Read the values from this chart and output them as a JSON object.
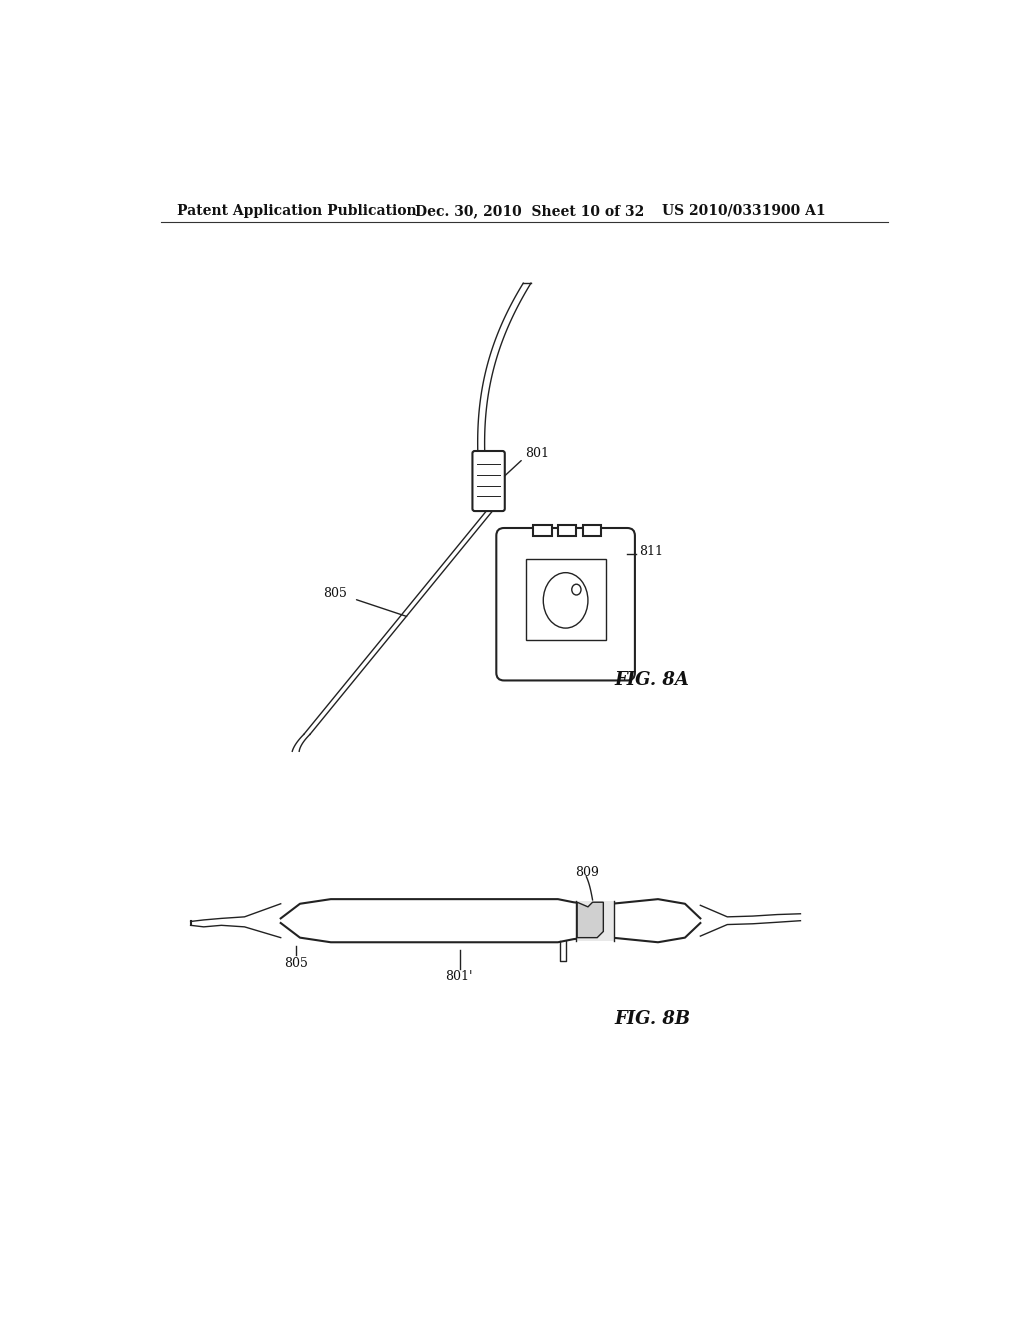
{
  "background_color": "#ffffff",
  "header_left": "Patent Application Publication",
  "header_mid": "Dec. 30, 2010  Sheet 10 of 32",
  "header_right": "US 2010/0331900 A1",
  "header_fontsize": 10,
  "fig8a_label": "FIG. 8A",
  "fig8b_label": "FIG. 8B",
  "label_801": "801",
  "label_805_a": "805",
  "label_811": "811",
  "label_805_b": "805",
  "label_801p": "801'",
  "label_809": "809"
}
